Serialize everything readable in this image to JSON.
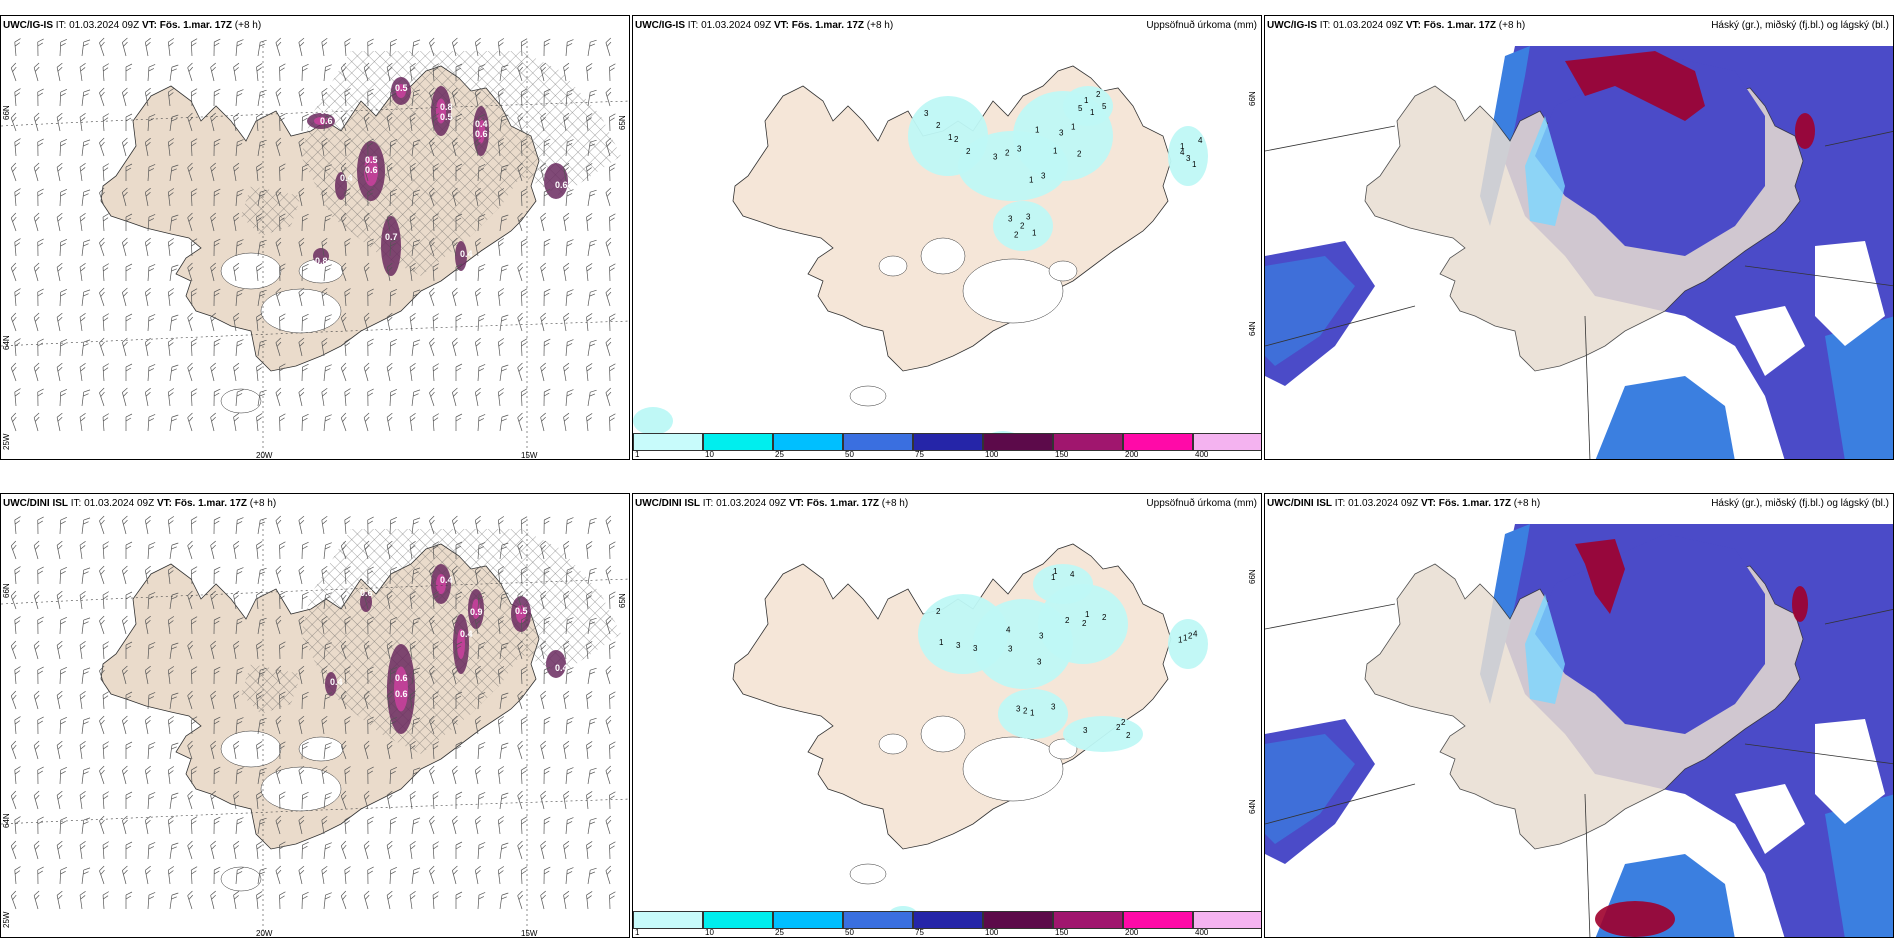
{
  "panels": [
    {
      "id": "igis-wind",
      "header": {
        "model": "UWC/IG-IS",
        "it": "IT: 01.03.2024 09Z",
        "vt": "VT: Fös. 1.mar. 17Z",
        "lead": "(+8 h)"
      },
      "right_title": "",
      "lat_labels": [
        "66N",
        "64N",
        "65N"
      ],
      "lon_labels": [
        "20W",
        "15W"
      ],
      "lower_lat_label": "25W",
      "value_labels": [
        "0.5",
        "0.8",
        "0.6",
        "0.4",
        "0.5",
        "0.6",
        "0.7",
        "0.4",
        "0.8",
        "0.4",
        "0.6",
        "0.5",
        "0.4",
        "0.6"
      ]
    },
    {
      "id": "igis-precip",
      "header": {
        "model": "UWC/IG-IS",
        "it": "IT: 01.03.2024 09Z",
        "vt": "VT: Fös. 1.mar. 17Z",
        "lead": "(+8 h)"
      },
      "right_title": "Uppsöfnuð úrkoma (mm)",
      "side_labels": [
        "66N",
        "64N"
      ],
      "value_labels": [
        "3",
        "3",
        "3",
        "3",
        "4",
        "5",
        "2",
        "2",
        "2",
        "2",
        "3",
        "2",
        "2",
        "3",
        "1",
        "2",
        "1",
        "1",
        "2",
        "1",
        "1",
        "3",
        "4",
        "5",
        "1",
        "3",
        "1",
        "1",
        "1",
        "1"
      ]
    },
    {
      "id": "igis-cloud",
      "header": {
        "model": "UWC/IG-IS",
        "it": "IT: 01.03.2024 09Z",
        "vt": "VT: Fös. 1.mar. 17Z",
        "lead": "(+8 h)"
      },
      "right_title": "Háský (gr.), miðský (fj.bl.) og lágský (bl.)"
    },
    {
      "id": "dini-wind",
      "header": {
        "model": "UWC/DINI ISL",
        "it": "IT: 01.03.2024 09Z",
        "vt": "VT: Fös. 1.mar. 17Z",
        "lead": "(+8 h)"
      },
      "right_title": "",
      "lat_labels": [
        "66N",
        "64N",
        "65N"
      ],
      "lon_labels": [
        "20W",
        "15W"
      ],
      "lower_lat_label": "25W",
      "value_labels": [
        "0.6",
        "0.4",
        "0.9",
        "0.4",
        "0.5",
        "0.4",
        "0.6",
        "0.4",
        "0.6"
      ]
    },
    {
      "id": "dini-precip",
      "header": {
        "model": "UWC/DINI ISL",
        "it": "IT: 01.03.2024 09Z",
        "vt": "VT: Fös. 1.mar. 17Z",
        "lead": "(+8 h)"
      },
      "right_title": "Uppsöfnuð úrkoma (mm)",
      "side_labels": [
        "66N",
        "64N"
      ],
      "value_labels": [
        "2",
        "4",
        "2",
        "3",
        "3",
        "4",
        "1",
        "3",
        "3",
        "2",
        "3",
        "2",
        "2",
        "4",
        "3",
        "3",
        "2",
        "2",
        "2",
        "1",
        "1",
        "1",
        "3",
        "1",
        "1",
        "2",
        "1"
      ]
    },
    {
      "id": "dini-cloud",
      "header": {
        "model": "UWC/DINI ISL",
        "it": "IT: 01.03.2024 09Z",
        "vt": "VT: Fös. 1.mar. 17Z",
        "lead": "(+8 h)"
      },
      "right_title": "Háský (gr.), miðský (fj.bl.) og lágský (bl.)"
    }
  ],
  "colorbar": {
    "ticks": [
      "1",
      "10",
      "25",
      "50",
      "75",
      "100",
      "150",
      "200",
      "400"
    ],
    "colors": [
      "#c8fbfb",
      "#00eeee",
      "#00bfff",
      "#3a6fe0",
      "#2525a8",
      "#5c0a4a",
      "#a0166e",
      "#ff0aa8",
      "#f4b3f0"
    ]
  },
  "colors": {
    "land": "#f5e6d8",
    "land_wind": "#eadbcb",
    "precip_light": "#bff8f6",
    "deep_blue": "#4b4bc8",
    "mid_blue": "#3b7fe0",
    "light_blue": "#7cd7ff",
    "purple": "#6a2a5f",
    "magenta": "#c7409b",
    "dark_red": "#a0002c"
  }
}
